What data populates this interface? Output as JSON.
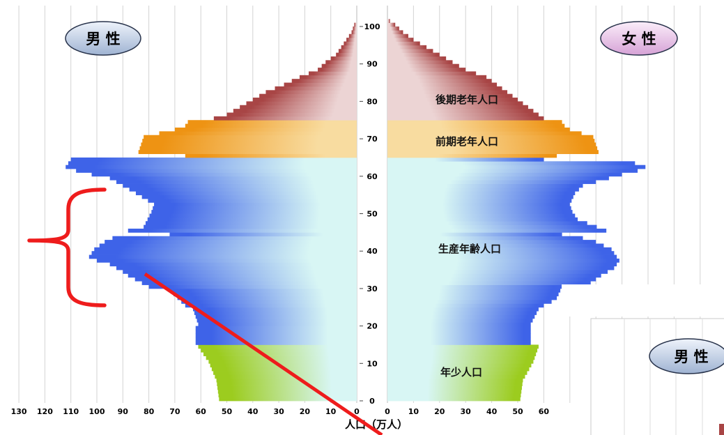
{
  "chart_data": {
    "type": "bar",
    "orientation": "horizontal",
    "subtype": "population-pyramid",
    "xlabel": "人口（万人）",
    "male_label": "男 性",
    "female_label": "女 性",
    "male_x_ticks": [
      "130",
      "120",
      "110",
      "100",
      "90",
      "80",
      "70",
      "60",
      "50",
      "40",
      "30",
      "20",
      "10",
      "0"
    ],
    "female_x_ticks": [
      "0",
      "10",
      "20",
      "30",
      "40",
      "50",
      "60"
    ],
    "age_ticks": [
      "0",
      "10",
      "20",
      "30",
      "40",
      "50",
      "60",
      "70",
      "80",
      "90",
      "100"
    ],
    "age_range": [
      0,
      101
    ],
    "male_xlim": [
      0,
      130
    ],
    "female_xlim": [
      0,
      65
    ],
    "grid": true,
    "bands": [
      {
        "name": "年少人口",
        "age_from": 0,
        "age_to": 14,
        "color": "#9ccc1f"
      },
      {
        "name": "生産年齢人口",
        "age_from": 15,
        "age_to": 64,
        "color": "#3e63e8"
      },
      {
        "name": "前期老年人口",
        "age_from": 65,
        "age_to": 74,
        "color": "#ee9313"
      },
      {
        "name": "後期老年人口",
        "age_from": 75,
        "age_to": 101,
        "color": "#a84545"
      }
    ],
    "male_anchor_points": [
      [
        0,
        53
      ],
      [
        5,
        54
      ],
      [
        10,
        57
      ],
      [
        14,
        61
      ],
      [
        15,
        62
      ],
      [
        19,
        62
      ],
      [
        20,
        61
      ],
      [
        24,
        63
      ],
      [
        25,
        66
      ],
      [
        29,
        72
      ],
      [
        30,
        80
      ],
      [
        33,
        88
      ],
      [
        34,
        90
      ],
      [
        36,
        95
      ],
      [
        37,
        100
      ],
      [
        38,
        103
      ],
      [
        40,
        101
      ],
      [
        41,
        99
      ],
      [
        42,
        97
      ],
      [
        43,
        94
      ],
      [
        44,
        72
      ],
      [
        45,
        88
      ],
      [
        46,
        82
      ],
      [
        50,
        79
      ],
      [
        52,
        78
      ],
      [
        55,
        85
      ],
      [
        57,
        90
      ],
      [
        59,
        95
      ],
      [
        60,
        102
      ],
      [
        61,
        108
      ],
      [
        62,
        112
      ],
      [
        64,
        110
      ],
      [
        65,
        66
      ],
      [
        66,
        84
      ],
      [
        68,
        83
      ],
      [
        70,
        82
      ],
      [
        72,
        70
      ],
      [
        73,
        66
      ],
      [
        74,
        65
      ],
      [
        75,
        55
      ],
      [
        76,
        50
      ],
      [
        78,
        45
      ],
      [
        80,
        40
      ],
      [
        82,
        35
      ],
      [
        84,
        28
      ],
      [
        86,
        22
      ],
      [
        88,
        15
      ],
      [
        90,
        12
      ],
      [
        92,
        8
      ],
      [
        94,
        6
      ],
      [
        96,
        4
      ],
      [
        98,
        2
      ],
      [
        100,
        1
      ],
      [
        101,
        0
      ]
    ],
    "female_anchor_points": [
      [
        0,
        51
      ],
      [
        5,
        52
      ],
      [
        10,
        56
      ],
      [
        14,
        58
      ],
      [
        15,
        55
      ],
      [
        20,
        55
      ],
      [
        24,
        58
      ],
      [
        25,
        60
      ],
      [
        26,
        63
      ],
      [
        27,
        65
      ],
      [
        30,
        67
      ],
      [
        31,
        78
      ],
      [
        33,
        82
      ],
      [
        35,
        87
      ],
      [
        37,
        89
      ],
      [
        38,
        88
      ],
      [
        40,
        86
      ],
      [
        42,
        80
      ],
      [
        43,
        75
      ],
      [
        44,
        67
      ],
      [
        45,
        84
      ],
      [
        48,
        73
      ],
      [
        50,
        71
      ],
      [
        52,
        70
      ],
      [
        55,
        72
      ],
      [
        57,
        75
      ],
      [
        58,
        80
      ],
      [
        60,
        90
      ],
      [
        61,
        96
      ],
      [
        62,
        99
      ],
      [
        63,
        95
      ],
      [
        64,
        60
      ],
      [
        65,
        65
      ],
      [
        66,
        81
      ],
      [
        68,
        80
      ],
      [
        70,
        79
      ],
      [
        72,
        70
      ],
      [
        73,
        68
      ],
      [
        74,
        67
      ],
      [
        75,
        60
      ],
      [
        76,
        58
      ],
      [
        78,
        54
      ],
      [
        80,
        50
      ],
      [
        82,
        46
      ],
      [
        84,
        42
      ],
      [
        86,
        38
      ],
      [
        88,
        30
      ],
      [
        90,
        25
      ],
      [
        92,
        20
      ],
      [
        94,
        15
      ],
      [
        96,
        10
      ],
      [
        98,
        6
      ],
      [
        100,
        3
      ],
      [
        101,
        1
      ]
    ]
  }
}
